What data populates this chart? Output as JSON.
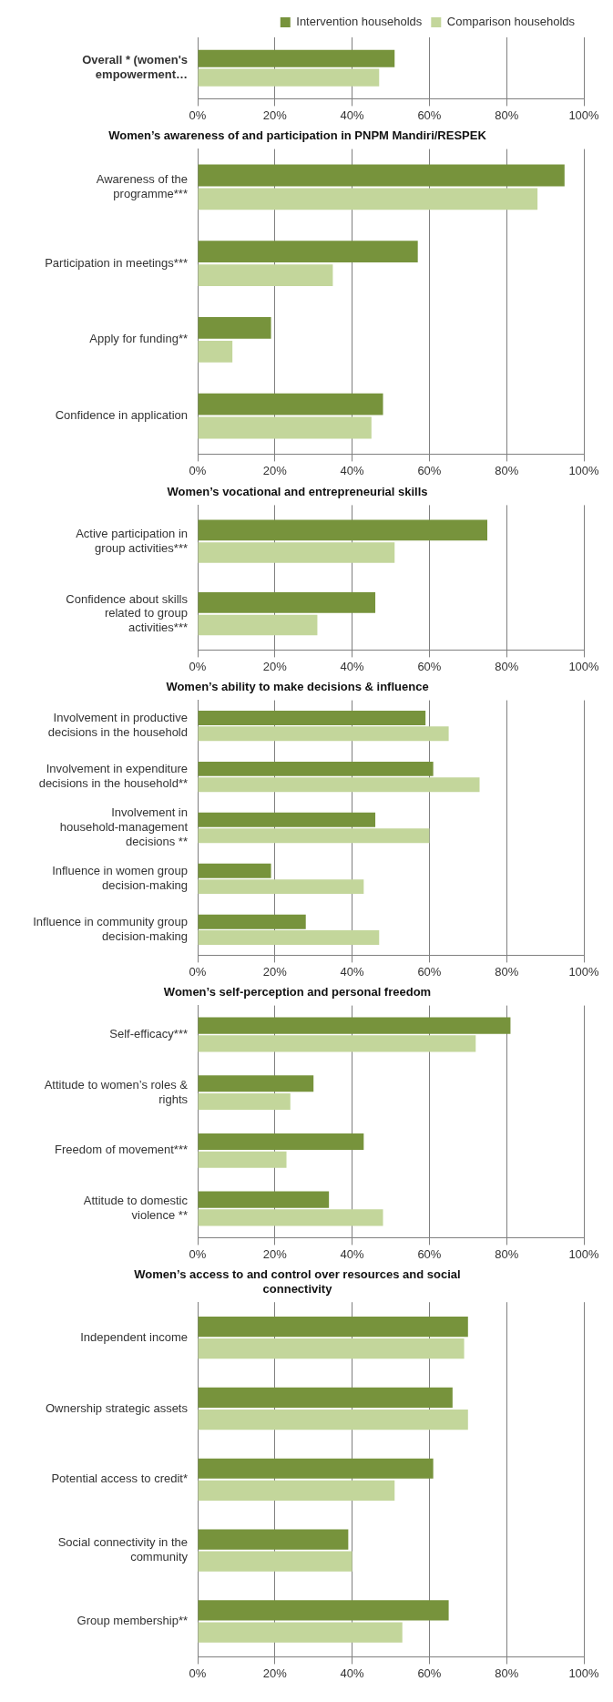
{
  "chart_data": [
    {
      "type": "bar",
      "orientation": "horizontal",
      "legend": "top",
      "grid": "x",
      "title": null,
      "categories": [
        "Overall * (women's empowerment…"
      ],
      "xlim": [
        0,
        100
      ],
      "xticks": [
        {
          "value": 0,
          "label": "0%"
        },
        {
          "value": 20,
          "label": "20%"
        },
        {
          "value": 40,
          "label": "40%"
        },
        {
          "value": 60,
          "label": "60%"
        },
        {
          "value": 80,
          "label": "80%"
        },
        {
          "value": 100,
          "label": "100%"
        }
      ],
      "series": [
        {
          "name": "Intervention households",
          "color": "#77933c",
          "values": [
            51
          ]
        },
        {
          "name": "Comparison households",
          "color": "#c3d69b",
          "values": [
            47
          ]
        }
      ]
    },
    {
      "type": "bar",
      "orientation": "horizontal",
      "grid": "x",
      "title": "Women’s awareness of and participation in PNPM Mandiri/RESPEK",
      "categories": [
        "Awareness of the programme***",
        "Participation in meetings***",
        "Apply for funding**",
        "Confidence in application"
      ],
      "xlim": [
        0,
        100
      ],
      "xticks": [
        {
          "value": 0,
          "label": "0%"
        },
        {
          "value": 20,
          "label": "20%"
        },
        {
          "value": 40,
          "label": "40%"
        },
        {
          "value": 60,
          "label": "60%"
        },
        {
          "value": 80,
          "label": "80%"
        },
        {
          "value": 100,
          "label": "100%"
        }
      ],
      "series": [
        {
          "color": "#77933c",
          "values": [
            95,
            57,
            19,
            48
          ]
        },
        {
          "color": "#c3d69b",
          "values": [
            88,
            35,
            9,
            45
          ]
        }
      ]
    },
    {
      "type": "bar",
      "orientation": "horizontal",
      "grid": "x",
      "title": "Women’s vocational and entrepreneurial skills",
      "categories": [
        "Active participation in group activities***",
        "Confidence about skills related to group activities***"
      ],
      "xlim": [
        0,
        100
      ],
      "xticks": [
        {
          "value": 0,
          "label": "0%"
        },
        {
          "value": 20,
          "label": "20%"
        },
        {
          "value": 40,
          "label": "40%"
        },
        {
          "value": 60,
          "label": "60%"
        },
        {
          "value": 80,
          "label": "80%"
        },
        {
          "value": 100,
          "label": "100%"
        }
      ],
      "series": [
        {
          "color": "#77933c",
          "values": [
            75,
            46
          ]
        },
        {
          "color": "#c3d69b",
          "values": [
            51,
            31
          ]
        }
      ]
    },
    {
      "type": "bar",
      "orientation": "horizontal",
      "grid": "x",
      "title": "Women’s ability to make decisions & influence",
      "categories": [
        "Involvement in productive decisions in the household",
        "Involvement in expenditure decisions in the household**",
        "Involvement in household-management decisions **",
        "Influence in women group decision-making",
        "Influence in community group decision-making"
      ],
      "xlim": [
        0,
        100
      ],
      "xticks": [
        {
          "value": 0,
          "label": "0%"
        },
        {
          "value": 20,
          "label": "20%"
        },
        {
          "value": 40,
          "label": "40%"
        },
        {
          "value": 60,
          "label": "60%"
        },
        {
          "value": 80,
          "label": "80%"
        },
        {
          "value": 100,
          "label": "100%"
        }
      ],
      "series": [
        {
          "color": "#77933c",
          "values": [
            59,
            61,
            46,
            19,
            28
          ]
        },
        {
          "color": "#c3d69b",
          "values": [
            65,
            73,
            60,
            43,
            47
          ]
        }
      ]
    },
    {
      "type": "bar",
      "orientation": "horizontal",
      "grid": "x",
      "title": "Women’s self-perception and personal freedom",
      "categories": [
        "Self-efficacy***",
        "Attitude to women’s roles & rights",
        "Freedom of movement***",
        "Attitude to domestic violence **"
      ],
      "xlim": [
        0,
        100
      ],
      "xticks": [
        {
          "value": 0,
          "label": "0%"
        },
        {
          "value": 20,
          "label": "20%"
        },
        {
          "value": 40,
          "label": "40%"
        },
        {
          "value": 60,
          "label": "60%"
        },
        {
          "value": 80,
          "label": "80%"
        },
        {
          "value": 100,
          "label": "100%"
        }
      ],
      "series": [
        {
          "color": "#77933c",
          "values": [
            81,
            30,
            43,
            34
          ]
        },
        {
          "color": "#c3d69b",
          "values": [
            72,
            24,
            23,
            48
          ]
        }
      ]
    },
    {
      "type": "bar",
      "orientation": "horizontal",
      "grid": "x",
      "title": "Women’s access to and control over resources and social connectivity",
      "categories": [
        "Independent income",
        "Ownership strategic assets",
        "Potential access to credit*",
        "Social connectivity in the community",
        "Group membership**"
      ],
      "xlim": [
        0,
        100
      ],
      "xticks": [
        {
          "value": 0,
          "label": "0%"
        },
        {
          "value": 20,
          "label": "20%"
        },
        {
          "value": 40,
          "label": "40%"
        },
        {
          "value": 60,
          "label": "60%"
        },
        {
          "value": 80,
          "label": "80%"
        },
        {
          "value": 100,
          "label": "100%"
        }
      ],
      "series": [
        {
          "color": "#77933c",
          "values": [
            70,
            66,
            61,
            39,
            65
          ]
        },
        {
          "color": "#c3d69b",
          "values": [
            69,
            70,
            51,
            40,
            53
          ]
        }
      ]
    }
  ]
}
